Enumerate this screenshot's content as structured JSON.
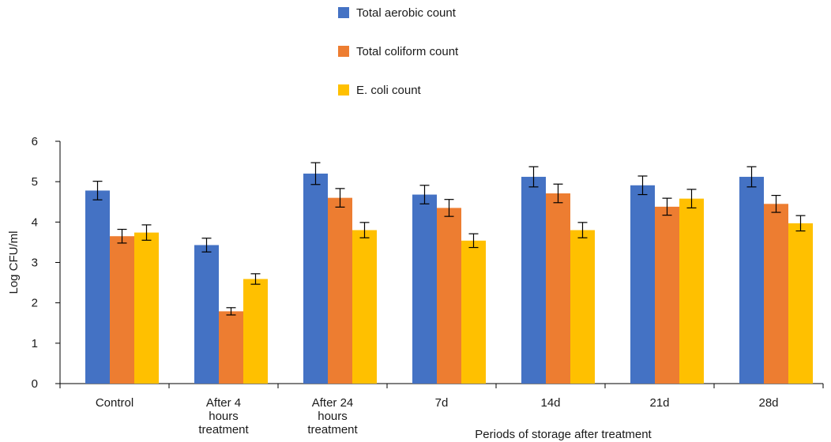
{
  "chart_data": {
    "type": "bar",
    "title": "",
    "xlabel": "Periods of storage after treatment",
    "ylabel": "Log CFU/ml",
    "ylim": [
      0,
      6
    ],
    "yticks": [
      0,
      1,
      2,
      3,
      4,
      5,
      6
    ],
    "grid": false,
    "legend_position": "top-center",
    "categories": [
      [
        "Control"
      ],
      [
        "After 4",
        "hours",
        "treatment"
      ],
      [
        "After 24",
        "hours",
        "treatment"
      ],
      [
        "7d"
      ],
      [
        "14d"
      ],
      [
        "21d"
      ],
      [
        "28d"
      ]
    ],
    "series": [
      {
        "name": "Total aerobic count",
        "color": "#4472C4",
        "values": [
          4.78,
          3.43,
          5.2,
          4.68,
          5.12,
          4.91,
          5.12
        ],
        "errors": [
          0.23,
          0.17,
          0.27,
          0.23,
          0.25,
          0.23,
          0.25
        ]
      },
      {
        "name": "Total coliform count",
        "color": "#ED7D31",
        "values": [
          3.65,
          1.79,
          4.6,
          4.35,
          4.71,
          4.38,
          4.45
        ],
        "errors": [
          0.17,
          0.09,
          0.23,
          0.21,
          0.23,
          0.21,
          0.21
        ]
      },
      {
        "name": "E. coli count",
        "color": "#FFC000",
        "values": [
          3.74,
          2.59,
          3.8,
          3.54,
          3.8,
          4.58,
          3.97
        ],
        "errors": [
          0.19,
          0.13,
          0.19,
          0.17,
          0.19,
          0.23,
          0.19
        ]
      }
    ]
  }
}
